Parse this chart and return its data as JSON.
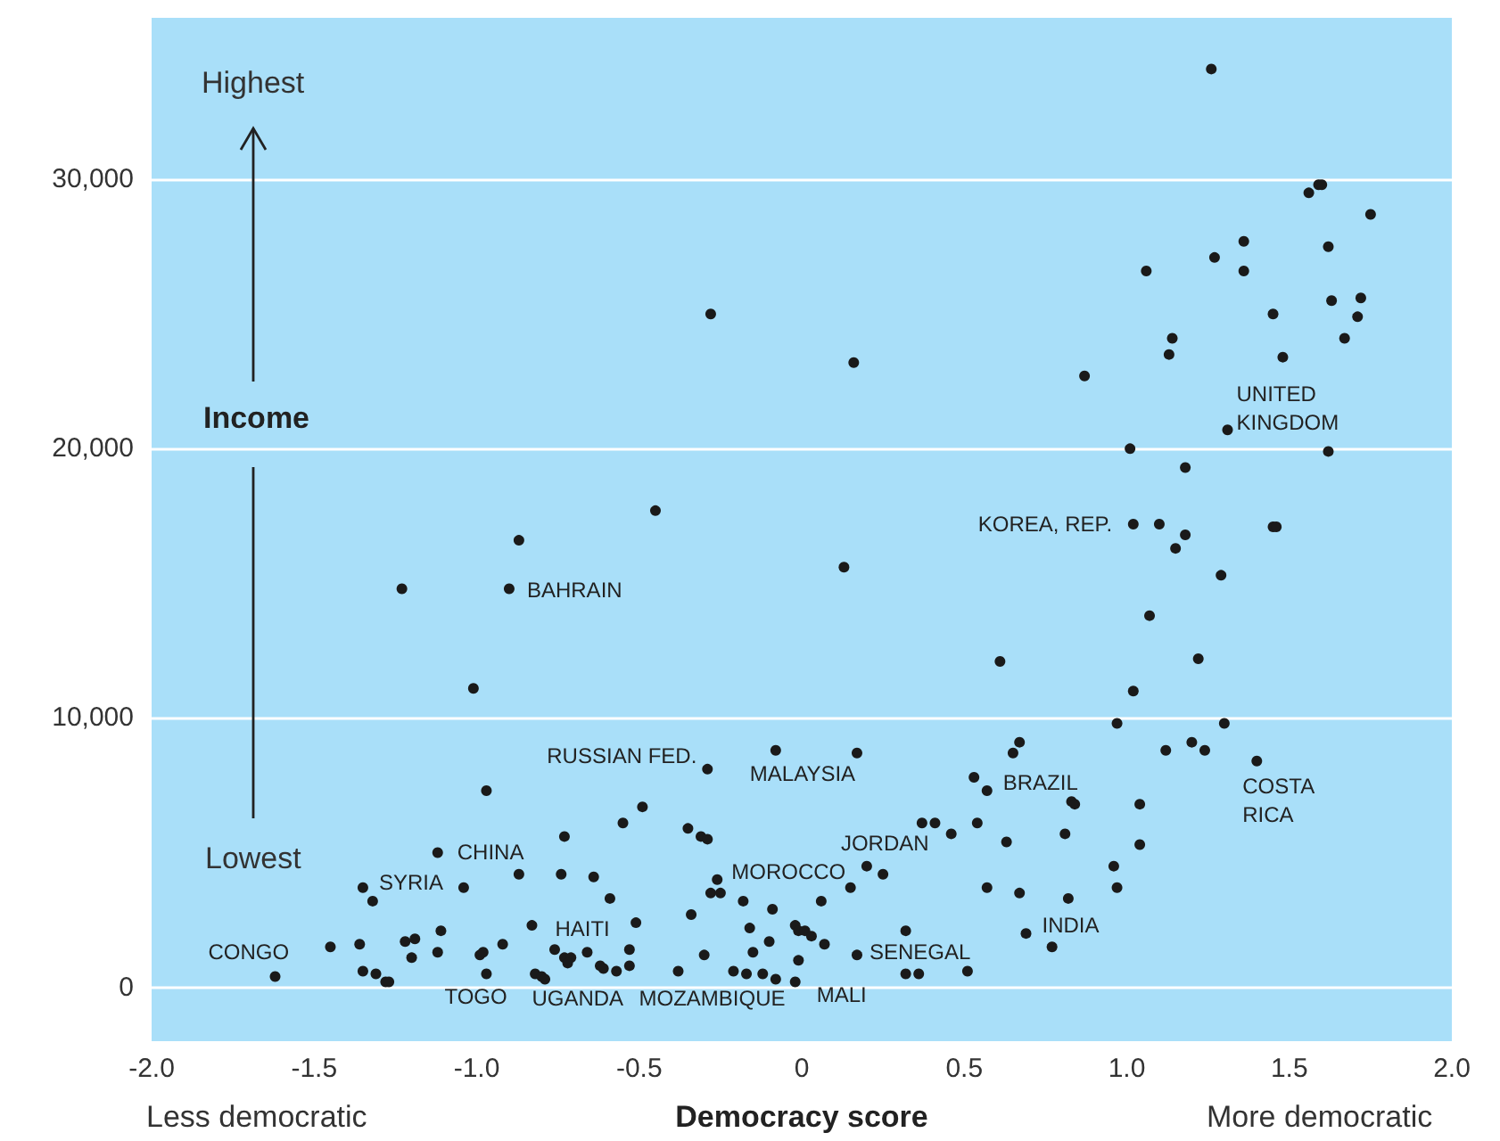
{
  "chart_data": {
    "type": "scatter",
    "xlabel": "Democracy score",
    "ylabel": "Income",
    "annotations": [
      "Highest",
      "Lowest",
      "Less democratic",
      "More democratic",
      {
        "text": "CONGO",
        "x": -1.62,
        "y": 400
      },
      {
        "text": "SYRIA",
        "x": -1.35,
        "y": 3700
      },
      {
        "text": "CHINA",
        "x": -1.12,
        "y": 5000
      },
      {
        "text": "BAHRAIN",
        "x": -0.9,
        "y": 14800
      },
      {
        "text": "HAITI",
        "x": -0.83,
        "y": 2300
      },
      {
        "text": "TOGO",
        "x": -0.97,
        "y": 500
      },
      {
        "text": "UGANDA",
        "x": -0.8,
        "y": 400
      },
      {
        "text": "MOZAMBIQUE",
        "x": -0.38,
        "y": 600
      },
      {
        "text": "MALI",
        "x": -0.02,
        "y": 200
      },
      {
        "text": "SENEGAL",
        "x": 0.17,
        "y": 1200
      },
      {
        "text": "MOROCCO",
        "x": -0.26,
        "y": 4000
      },
      {
        "text": "JORDAN",
        "x": 0.2,
        "y": 4500
      },
      {
        "text": "RUSSIAN FED.",
        "x": -0.29,
        "y": 8100
      },
      {
        "text": "MALAYSIA",
        "x": -0.08,
        "y": 8800
      },
      {
        "text": "BRAZIL",
        "x": 0.57,
        "y": 7300
      },
      {
        "text": "INDIA",
        "x": 0.69,
        "y": 2000
      },
      {
        "text": "COSTA RICA",
        "x": 1.4,
        "y": 8400
      },
      {
        "text": "KOREA, REP.",
        "x": 1.02,
        "y": 17200
      },
      {
        "text": "UNITED KINGDOM",
        "x": 1.31,
        "y": 20700
      }
    ],
    "x": [
      1.26,
      1.56,
      1.59,
      1.6,
      1.75,
      1.36,
      1.62,
      1.27,
      1.06,
      1.36,
      1.63,
      1.72,
      1.45,
      1.71,
      1.67,
      1.14,
      1.13,
      1.48,
      0.87,
      1.31,
      1.01,
      1.62,
      1.18,
      1.02,
      1.1,
      1.18,
      1.15,
      1.45,
      1.46,
      1.29,
      1.07,
      1.22,
      1.02,
      -0.28,
      0.16,
      -0.45,
      -0.87,
      -1.23,
      -0.9,
      0.13,
      0.61,
      -1.01,
      0.97,
      1.3,
      1.12,
      1.2,
      1.24,
      1.4,
      0.83,
      0.84,
      1.04,
      0.81,
      1.04,
      0.96,
      0.97,
      0.82,
      0.77,
      0.69,
      -0.08,
      0.17,
      0.67,
      0.65,
      -0.29,
      0.53,
      0.57,
      -0.49,
      -0.55,
      -0.35,
      -0.31,
      -0.29,
      0.37,
      0.41,
      0.54,
      0.46,
      0.63,
      -0.26,
      -0.28,
      -0.25,
      0.2,
      0.25,
      0.15,
      -0.59,
      -0.18,
      -0.09,
      0.06,
      0.57,
      0.67,
      -0.34,
      -0.51,
      -0.02,
      -0.01,
      0.01,
      0.03,
      0.07,
      -0.16,
      -0.1,
      0.32,
      -0.53,
      -0.53,
      -0.57,
      -0.3,
      -0.15,
      -0.01,
      0.17,
      -0.38,
      -0.21,
      -0.17,
      -0.12,
      -0.08,
      -0.02,
      0.32,
      0.36,
      0.51,
      -0.97,
      -1.12,
      -0.73,
      -0.87,
      -0.74,
      -0.64,
      -1.04,
      -1.35,
      -1.32,
      -0.83,
      -1.11,
      -1.45,
      -1.36,
      -1.22,
      -1.19,
      -0.92,
      -1.2,
      -1.12,
      -0.99,
      -0.98,
      -0.76,
      -0.73,
      -0.71,
      -0.66,
      -0.72,
      -0.62,
      -0.61,
      -1.62,
      -1.35,
      -1.31,
      -1.28,
      -1.27,
      -0.97,
      -0.82,
      -0.8,
      -0.79
    ],
    "values": [
      34100,
      29500,
      29800,
      29800,
      28700,
      27700,
      27500,
      27100,
      26600,
      26600,
      25500,
      25600,
      25000,
      24900,
      24100,
      24100,
      23500,
      23400,
      22700,
      20700,
      20000,
      19900,
      19300,
      17200,
      17200,
      16800,
      16300,
      17100,
      17100,
      15300,
      13800,
      12200,
      11000,
      25000,
      23200,
      17700,
      16600,
      14800,
      14800,
      15600,
      12100,
      11100,
      9800,
      9800,
      8800,
      9100,
      8800,
      8400,
      6900,
      6800,
      6800,
      5700,
      5300,
      4500,
      3700,
      3300,
      1500,
      2000,
      8800,
      8700,
      9100,
      8700,
      8100,
      7800,
      7300,
      6700,
      6100,
      5900,
      5600,
      5500,
      6100,
      6100,
      6100,
      5700,
      5400,
      4000,
      3500,
      3500,
      4500,
      4200,
      3700,
      3300,
      3200,
      2900,
      3200,
      3700,
      3500,
      2700,
      2400,
      2300,
      2100,
      2100,
      1900,
      1600,
      2200,
      1700,
      2100,
      1400,
      800,
      600,
      1200,
      1300,
      1000,
      1200,
      600,
      600,
      500,
      500,
      300,
      200,
      500,
      500,
      600,
      7300,
      5000,
      5600,
      4200,
      4200,
      4100,
      3700,
      3700,
      3200,
      2300,
      2100,
      1500,
      1600,
      1700,
      1800,
      1600,
      1100,
      1300,
      1200,
      1300,
      1400,
      1100,
      1100,
      1300,
      900,
      800,
      700,
      400,
      600,
      500,
      200,
      200,
      500,
      500,
      400,
      300
    ],
    "color": "#1a1a1a",
    "marker": "circle",
    "xlim": [
      -2,
      2
    ],
    "xticks": [
      {
        "value": -2,
        "label": "-2.0"
      },
      {
        "value": -1.5,
        "label": "-1.5"
      },
      {
        "value": -1,
        "label": "-1.0"
      },
      {
        "value": -0.5,
        "label": "-0.5"
      },
      0,
      0.5,
      {
        "value": 1,
        "label": "1.0"
      },
      1.5,
      {
        "value": 2,
        "label": "2.0"
      }
    ],
    "ylim": [
      -2000,
      36000
    ],
    "yticks": [
      0,
      {
        "value": 10000,
        "label": "10,000"
      },
      {
        "value": 20000,
        "label": "20,000"
      },
      {
        "value": 30000,
        "label": "30,000"
      }
    ],
    "grid": "y"
  }
}
